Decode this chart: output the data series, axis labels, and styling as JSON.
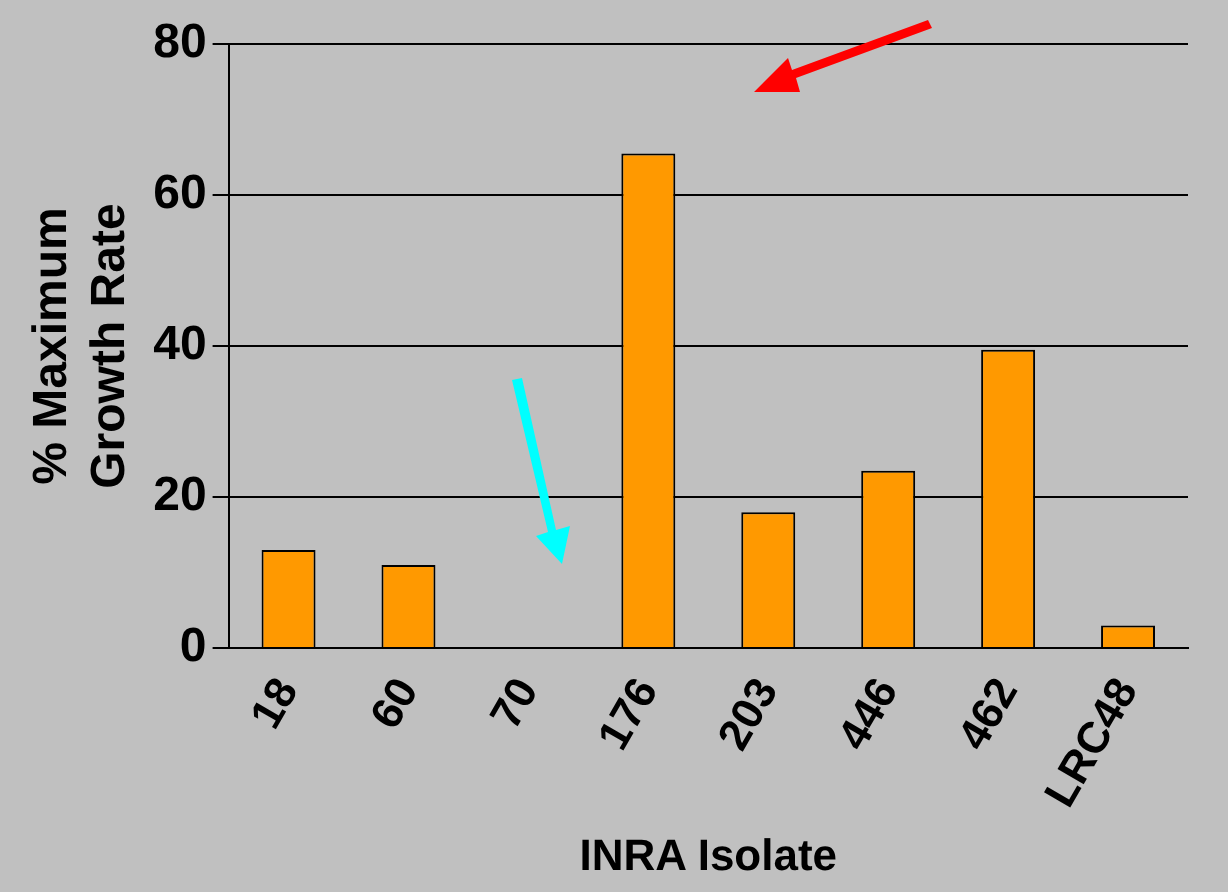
{
  "chart_data": {
    "type": "bar",
    "xlabel": "INRA Isolate",
    "ylabel": "% Maximum Growth Rate",
    "categories": [
      "18",
      "60",
      "70",
      "176",
      "203",
      "446",
      "462",
      "LRC48"
    ],
    "values": [
      13,
      11,
      0,
      65.5,
      18,
      23.5,
      39.5,
      3
    ],
    "color": "#ff9900",
    "ylim": [
      0,
      80
    ],
    "yticks": [
      0,
      20,
      40,
      60,
      80
    ],
    "grid": "y"
  }
}
